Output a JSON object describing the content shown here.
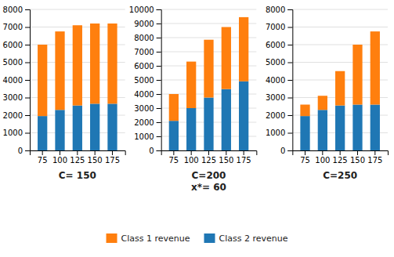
{
  "chart_data": [
    {
      "type": "bar",
      "title": "C= 150",
      "stacked": true,
      "grid": true,
      "legend": "bottom",
      "categories": [
        75,
        100,
        125,
        150,
        175
      ],
      "series": [
        {
          "name": "Class 2 revenue",
          "values": [
            1950,
            2300,
            2550,
            2650,
            2650
          ]
        },
        {
          "name": "Class 1 revenue",
          "values": [
            4050,
            4450,
            4550,
            4550,
            4550
          ]
        }
      ],
      "ylim": [
        0,
        8000
      ],
      "yticks": [
        0,
        1000,
        2000,
        3000,
        4000,
        5000,
        6000,
        7000,
        8000
      ]
    },
    {
      "type": "bar",
      "title": "C=200\nx*= 60",
      "stacked": true,
      "grid": true,
      "categories": [
        75,
        100,
        125,
        150,
        175
      ],
      "series": [
        {
          "name": "Class 2 revenue",
          "values": [
            2100,
            3000,
            3750,
            4350,
            4900
          ]
        },
        {
          "name": "Class 1 revenue",
          "values": [
            1900,
            3300,
            4100,
            4400,
            4550
          ]
        }
      ],
      "ylim": [
        0,
        10000
      ],
      "yticks": [
        0,
        1000,
        2000,
        3000,
        4000,
        5000,
        6000,
        7000,
        8000,
        9000,
        10000
      ]
    },
    {
      "type": "bar",
      "title": "C=250",
      "stacked": true,
      "grid": true,
      "categories": [
        75,
        100,
        125,
        150,
        175
      ],
      "series": [
        {
          "name": "Class 2 revenue",
          "values": [
            1950,
            2300,
            2550,
            2600,
            2600
          ]
        },
        {
          "name": "Class 1 revenue",
          "values": [
            650,
            800,
            1950,
            3400,
            4150
          ]
        }
      ],
      "ylim": [
        0,
        8000
      ],
      "yticks": [
        0,
        1000,
        2000,
        3000,
        4000,
        5000,
        6000,
        7000,
        8000
      ]
    }
  ]
}
